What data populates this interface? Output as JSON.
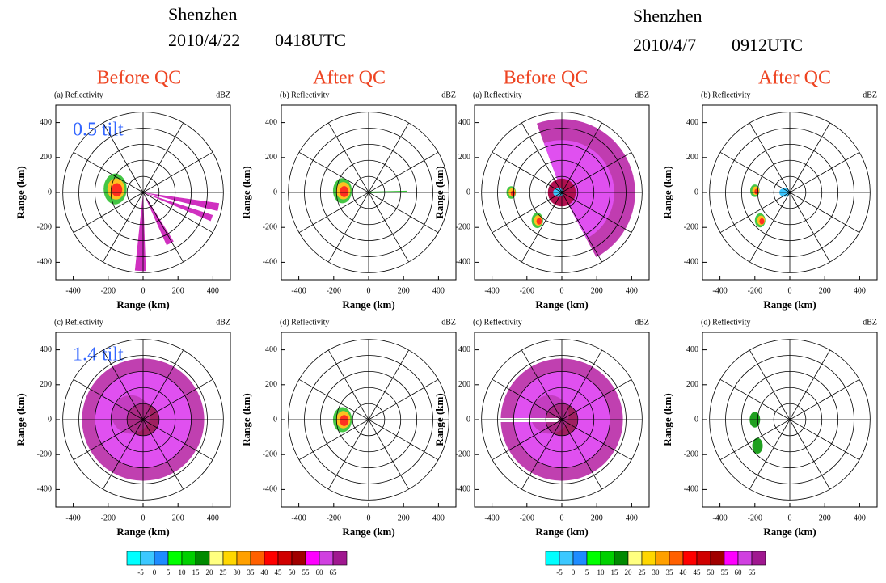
{
  "headers": [
    {
      "site": "Shenzhen",
      "date": "2010/4/22",
      "time": "0418UTC"
    },
    {
      "site": "Shenzhen",
      "date": "2010/4/7",
      "time": "0912UTC"
    }
  ],
  "column_titles": [
    "Before QC",
    "After QC",
    "Before QC",
    "After QC"
  ],
  "tilt_labels": [
    "0.5 tilt",
    "1.4 tilt"
  ],
  "chart_data": [
    {
      "type": "polar",
      "panel_label": "(a) Reflectivity",
      "unit": "dBZ",
      "xlabel": "Range (km)",
      "ylabel": "Range (km)",
      "xlim": [
        -500,
        500
      ],
      "ylim": [
        -500,
        500
      ],
      "xticks": [
        -400,
        -200,
        0,
        200,
        400
      ],
      "yticks": [
        -400,
        -200,
        0,
        200,
        400
      ]
    },
    {
      "type": "polar",
      "panel_label": "(b) Reflectivity",
      "unit": "dBZ",
      "xlabel": "Range (km)",
      "ylabel": "Range (km)",
      "xlim": [
        -500,
        500
      ],
      "ylim": [
        -500,
        500
      ],
      "xticks": [
        -400,
        -200,
        0,
        200,
        400
      ],
      "yticks": [
        -400,
        -200,
        0,
        200,
        400
      ]
    },
    {
      "type": "polar",
      "panel_label": "(a) Reflectivity",
      "unit": "dBZ",
      "xlabel": "Range (km)",
      "ylabel": "Range (km)",
      "xlim": [
        -500,
        500
      ],
      "ylim": [
        -500,
        500
      ],
      "xticks": [
        -400,
        -200,
        0,
        200,
        400
      ],
      "yticks": [
        -400,
        -200,
        0,
        200,
        400
      ]
    },
    {
      "type": "polar",
      "panel_label": "(b) Reflectivity",
      "unit": "dBZ",
      "xlabel": "Range (km)",
      "ylabel": "Range (km)",
      "xlim": [
        -500,
        500
      ],
      "ylim": [
        -500,
        500
      ],
      "xticks": [
        -400,
        -200,
        0,
        200,
        400
      ],
      "yticks": [
        -400,
        -200,
        0,
        200,
        400
      ]
    },
    {
      "type": "polar",
      "panel_label": "(c) Reflectivity",
      "unit": "dBZ",
      "xlabel": "Range (km)",
      "ylabel": "Range (km)",
      "xlim": [
        -500,
        500
      ],
      "ylim": [
        -500,
        500
      ],
      "xticks": [
        -400,
        -200,
        0,
        200,
        400
      ],
      "yticks": [
        -400,
        -200,
        0,
        200,
        400
      ]
    },
    {
      "type": "polar",
      "panel_label": "(d) Reflectivity",
      "unit": "dBZ",
      "xlabel": "Range (km)",
      "ylabel": "Range (km)",
      "xlim": [
        -500,
        500
      ],
      "ylim": [
        -500,
        500
      ],
      "xticks": [
        -400,
        -200,
        0,
        200,
        400
      ],
      "yticks": [
        -400,
        -200,
        0,
        200,
        400
      ]
    },
    {
      "type": "polar",
      "panel_label": "(c) Reflectivity",
      "unit": "dBZ",
      "xlabel": "Range (km)",
      "ylabel": "Range (km)",
      "xlim": [
        -500,
        500
      ],
      "ylim": [
        -500,
        500
      ],
      "xticks": [
        -400,
        -200,
        0,
        200,
        400
      ],
      "yticks": [
        -400,
        -200,
        0,
        200,
        400
      ]
    },
    {
      "type": "polar",
      "panel_label": "(d) Reflectivity",
      "unit": "dBZ",
      "xlabel": "Range (km)",
      "ylabel": "Range (km)",
      "xlim": [
        -500,
        500
      ],
      "ylim": [
        -500,
        500
      ],
      "xticks": [
        -400,
        -200,
        0,
        200,
        400
      ],
      "yticks": [
        -400,
        -200,
        0,
        200,
        400
      ]
    }
  ],
  "colorbar": {
    "colors": [
      "#00ffff",
      "#3cc8ff",
      "#1e8cff",
      "#00ff00",
      "#00d000",
      "#008a00",
      "#ffff80",
      "#ffd700",
      "#ffa000",
      "#ff6000",
      "#ff0000",
      "#d00000",
      "#a00000",
      "#ff00ff",
      "#d040e0",
      "#a01890"
    ],
    "labels": [
      -5,
      0,
      5,
      10,
      15,
      20,
      25,
      30,
      35,
      40,
      45,
      50,
      55,
      60,
      65
    ]
  }
}
